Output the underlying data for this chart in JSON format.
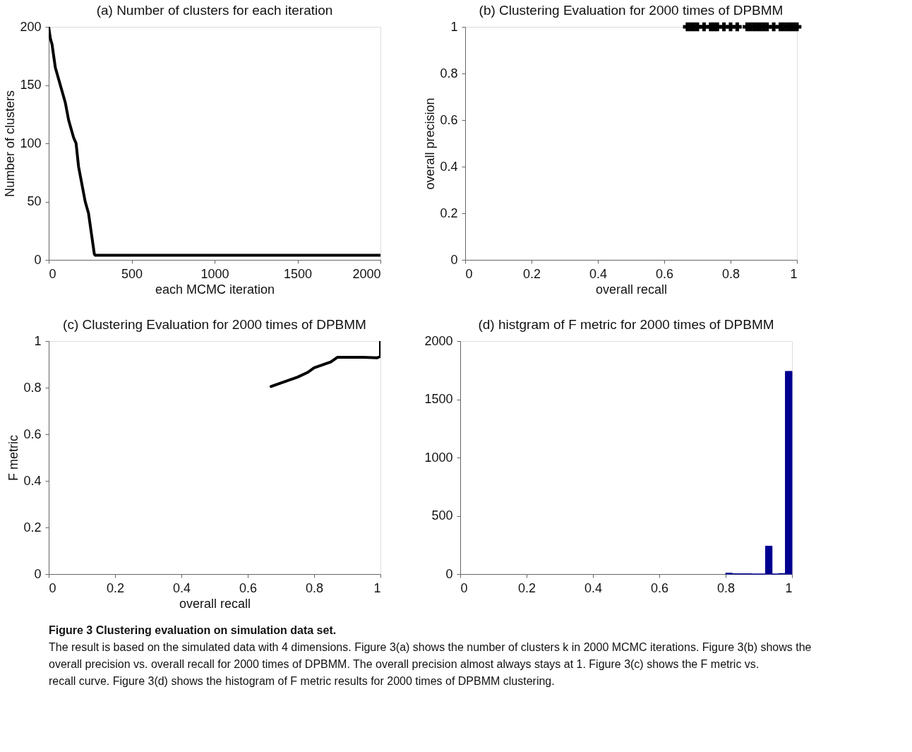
{
  "chart_data": [
    {
      "type": "line",
      "title": "(a) Number of clusters for each iteration",
      "xlabel": "each MCMC iteration",
      "ylabel": "Number of clusters",
      "xlim": [
        0,
        2000
      ],
      "xticks": [
        0,
        500,
        1000,
        1500,
        2000
      ],
      "ylim": [
        0,
        200
      ],
      "yticks": [
        0,
        50,
        100,
        150,
        200
      ],
      "series": [
        {
          "color": "#000000",
          "x": [
            0,
            10,
            20,
            30,
            40,
            60,
            80,
            100,
            120,
            140,
            150,
            165,
            180,
            200,
            220,
            240,
            260,
            275,
            280,
            2000
          ],
          "values": [
            200,
            190,
            185,
            175,
            165,
            155,
            145,
            135,
            120,
            110,
            105,
            100,
            80,
            65,
            50,
            40,
            20,
            5,
            4,
            4
          ]
        }
      ]
    },
    {
      "type": "scatter",
      "title": "(b) Clustering Evaluation for 2000 times of DPBMM",
      "xlabel": "overall recall",
      "ylabel": "overall precision",
      "xlim": [
        0,
        1
      ],
      "xticks": [
        0,
        0.2,
        0.4,
        0.6,
        0.8,
        1
      ],
      "ylim": [
        0,
        1
      ],
      "yticks": [
        0,
        0.2,
        0.4,
        0.6,
        0.8,
        1
      ],
      "marker": "cross",
      "series": [
        {
          "color": "#000000",
          "x": [
            0.67,
            0.68,
            0.69,
            0.7,
            0.72,
            0.74,
            0.75,
            0.76,
            0.78,
            0.8,
            0.82,
            0.85,
            0.86,
            0.87,
            0.88,
            0.89,
            0.9,
            0.91,
            0.93,
            0.95,
            0.96,
            0.97,
            0.98,
            0.99,
            1.0
          ],
          "values": [
            1,
            1,
            1,
            1,
            1,
            1,
            1,
            1,
            1,
            1,
            1,
            1,
            1,
            1,
            1,
            1,
            1,
            1,
            1,
            1,
            1,
            1,
            1,
            1,
            1
          ]
        }
      ]
    },
    {
      "type": "line",
      "title": "(c) Clustering Evaluation for 2000 times of DPBMM",
      "xlabel": "overall recall",
      "ylabel": "F metric",
      "xlim": [
        0,
        1
      ],
      "xticks": [
        0,
        0.2,
        0.4,
        0.6,
        0.8,
        1
      ],
      "ylim": [
        0,
        1
      ],
      "yticks": [
        0,
        0.2,
        0.4,
        0.6,
        0.8,
        1
      ],
      "series": [
        {
          "color": "#000000",
          "x": [
            0.67,
            0.7,
            0.75,
            0.78,
            0.8,
            0.85,
            0.87,
            0.9,
            0.95,
            0.99,
            1.0,
            1.0
          ],
          "values": [
            0.805,
            0.82,
            0.845,
            0.865,
            0.885,
            0.91,
            0.93,
            0.93,
            0.93,
            0.928,
            0.935,
            1.0
          ]
        }
      ]
    },
    {
      "type": "histogram",
      "title": "(d) histgram of F metric for 2000 times of DPBMM",
      "xlim": [
        0,
        1
      ],
      "xticks": [
        0,
        0.2,
        0.4,
        0.6,
        0.8,
        1
      ],
      "ylim": [
        0,
        2000
      ],
      "yticks": [
        0,
        500,
        1000,
        1500,
        2000
      ],
      "color": "#000090",
      "bins": [
        0.8,
        0.82,
        0.84,
        0.86,
        0.88,
        0.9,
        0.92,
        0.94,
        0.96,
        0.98,
        1.0
      ],
      "values": [
        8,
        3,
        3,
        3,
        0,
        0,
        240,
        0,
        5,
        1740
      ],
      "annotations": [
        "Figure 3 Clustering evaluation on simulation data set.",
        "The result is based on the simulated data with 4 dimensions. Figure 3(a) shows the number of clusters k in 2000 MCMC iterations. Figure 3(b) shows the overall precision vs. overall recall for 2000 times of DPBMM. The overall precision almost always stays at 1. Figure 3(c) shows the F metric vs. recall curve. Figure 3(d) shows the histogram of F metric results for 2000 times of DPBMM clustering."
      ]
    }
  ]
}
